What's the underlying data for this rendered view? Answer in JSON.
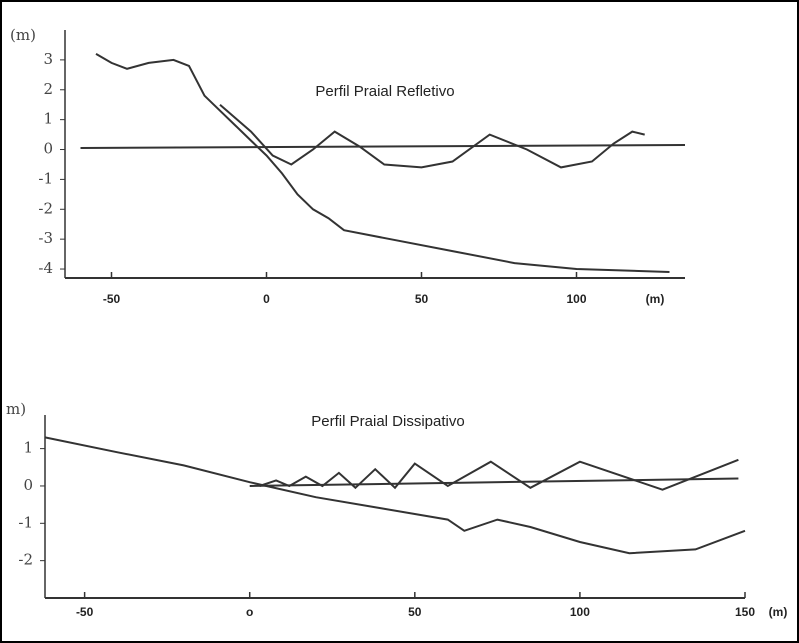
{
  "chart_data": [
    {
      "type": "line",
      "title": "Perfil Praial Refletivo",
      "y_label": "(m)",
      "x_label": "(m)",
      "xlim": [
        -65,
        135
      ],
      "ylim": [
        -4.3,
        4
      ],
      "xticks": [
        -50,
        0,
        50,
        100
      ],
      "yticks": [
        3,
        2,
        1,
        0,
        -1,
        -2,
        -3,
        -4
      ],
      "series": [
        {
          "color": "#333",
          "x": [
            -55,
            -50,
            -45,
            -38,
            -30,
            -25,
            -20,
            -15,
            -10,
            -5,
            0,
            5,
            10,
            15,
            20,
            25,
            40,
            60,
            80,
            100,
            130
          ],
          "values": [
            3.2,
            2.9,
            2.7,
            2.9,
            3.0,
            2.8,
            1.8,
            1.3,
            0.8,
            0.3,
            -0.2,
            -0.8,
            -1.5,
            -2.0,
            -2.3,
            -2.7,
            -3.0,
            -3.4,
            -3.8,
            -4.0,
            -4.1
          ]
        },
        {
          "color": "#333",
          "x": [
            -15,
            -5,
            2,
            8,
            15,
            22,
            30,
            38,
            50,
            60,
            72,
            84,
            95,
            105,
            112,
            118,
            122
          ],
          "values": [
            1.5,
            0.6,
            -0.2,
            -0.5,
            0.0,
            0.6,
            0.1,
            -0.5,
            -0.6,
            -0.4,
            0.5,
            0.0,
            -0.6,
            -0.4,
            0.2,
            0.6,
            0.5
          ]
        },
        {
          "color": "#333",
          "x": [
            -60,
            135
          ],
          "values": [
            0.05,
            0.15
          ]
        }
      ]
    },
    {
      "type": "line",
      "title": "Perfil Praial Dissipativo",
      "y_label": "m)",
      "x_label": "(m)",
      "xlim": [
        -62,
        150
      ],
      "ylim": [
        -3.0,
        1.9
      ],
      "xticks": [
        -50,
        {
          "value": 0,
          "label": "o"
        },
        50,
        100,
        150
      ],
      "yticks": [
        1,
        0,
        -1,
        -2
      ],
      "series": [
        {
          "color": "#333",
          "x": [
            -62,
            -40,
            -20,
            0,
            20,
            40,
            60,
            65,
            75,
            85,
            100,
            115,
            135,
            150
          ],
          "values": [
            1.3,
            0.9,
            0.55,
            0.1,
            -0.3,
            -0.6,
            -0.9,
            -1.2,
            -0.9,
            -1.1,
            -1.5,
            -1.8,
            -1.7,
            -1.2
          ]
        },
        {
          "color": "#333",
          "x": [
            3,
            8,
            12,
            17,
            22,
            27,
            32,
            38,
            44,
            50,
            60,
            73,
            85,
            100,
            125,
            148
          ],
          "values": [
            0.0,
            0.15,
            0.0,
            0.25,
            0.0,
            0.35,
            -0.05,
            0.45,
            -0.05,
            0.6,
            0.0,
            0.65,
            -0.05,
            0.65,
            -0.1,
            0.7
          ]
        },
        {
          "color": "#333",
          "x": [
            0,
            148
          ],
          "values": [
            0.0,
            0.2
          ]
        }
      ]
    }
  ]
}
